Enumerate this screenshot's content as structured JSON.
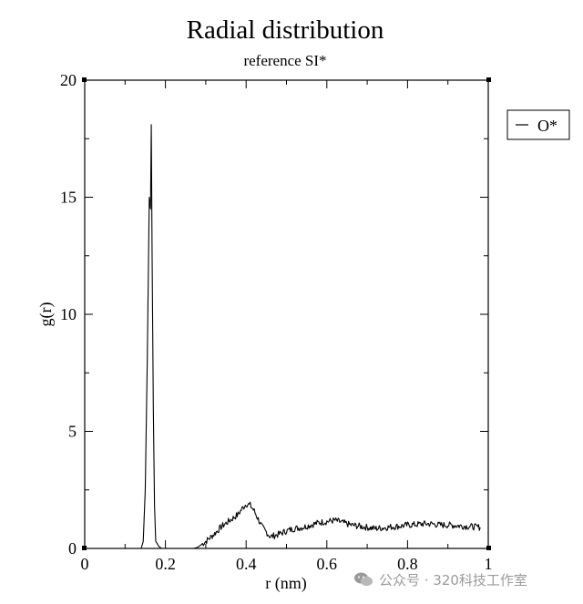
{
  "chart_data": {
    "type": "line",
    "title": "Radial distribution",
    "subtitle": "reference SI*",
    "xlabel": "r (nm)",
    "ylabel": "g(r)",
    "xlim": [
      0,
      1
    ],
    "ylim": [
      0,
      20
    ],
    "xticks": [
      "0",
      "0.2",
      "0.4",
      "0.6",
      "0.8",
      "1"
    ],
    "yticks": [
      "0",
      "5",
      "10",
      "15",
      "20"
    ],
    "grid": false,
    "legend_position": "outside-right-top",
    "series": [
      {
        "name": "O*",
        "color": "#000000",
        "x": [
          0,
          0.14,
          0.145,
          0.15,
          0.155,
          0.16,
          0.163,
          0.165,
          0.167,
          0.17,
          0.173,
          0.176,
          0.18,
          0.183,
          0.19,
          0.2,
          0.21,
          0.23,
          0.25,
          0.27,
          0.28,
          0.3,
          0.32,
          0.34,
          0.36,
          0.38,
          0.39,
          0.4,
          0.41,
          0.42,
          0.44,
          0.46,
          0.48,
          0.5,
          0.52,
          0.54,
          0.56,
          0.58,
          0.6,
          0.62,
          0.64,
          0.66,
          0.68,
          0.7,
          0.72,
          0.74,
          0.76,
          0.78,
          0.8,
          0.82,
          0.84,
          0.86,
          0.88,
          0.9,
          0.92,
          0.94,
          0.96,
          0.98
        ],
        "y": [
          0,
          0,
          0.3,
          2.5,
          8.0,
          15.0,
          14.5,
          18.1,
          12.5,
          6.0,
          1.8,
          0.3,
          0.2,
          0.1,
          0,
          0,
          0,
          0,
          0,
          0,
          0.05,
          0.3,
          0.6,
          0.95,
          1.2,
          1.45,
          1.7,
          1.9,
          1.85,
          1.6,
          0.9,
          0.5,
          0.6,
          0.75,
          0.85,
          0.9,
          1.0,
          1.1,
          1.15,
          1.2,
          1.1,
          1.0,
          0.95,
          0.9,
          0.85,
          0.88,
          0.92,
          0.95,
          1.0,
          1.02,
          1.05,
          1.05,
          1.0,
          1.0,
          0.98,
          0.95,
          0.93,
          0.9
        ]
      }
    ]
  },
  "watermark": {
    "text": "公众号 · 320科技工作室",
    "icon": "wechat-logo"
  }
}
